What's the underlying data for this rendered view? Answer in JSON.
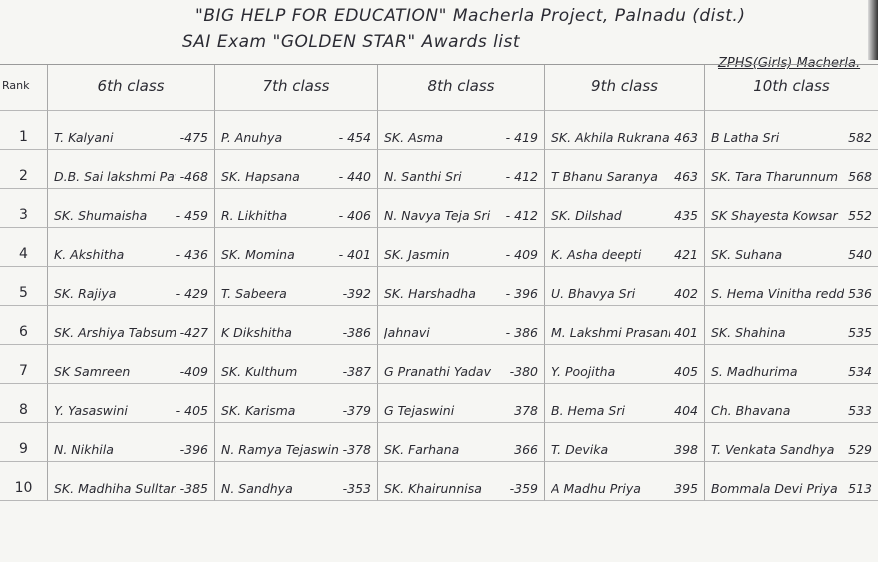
{
  "header": {
    "line1": "\"BIG HELP FOR EDUCATION\"  Macherla Project, Palnadu (dist.)",
    "line2": "SAI  Exam  \"GOLDEN STAR\"  Awards list",
    "school": "ZPHS(Girls) Macherla."
  },
  "columns": [
    "Rank",
    "6th class",
    "7th class",
    "8th class",
    "9th class",
    "10th class"
  ],
  "rows": [
    {
      "rank": "1",
      "entries": [
        {
          "name": "T. Kalyani",
          "score": "-475"
        },
        {
          "name": "P. Anuhya",
          "score": "- 454"
        },
        {
          "name": "SK. Asma",
          "score": "- 419"
        },
        {
          "name": "SK. Akhila Rukrana",
          "score": "463"
        },
        {
          "name": "B Latha Sri",
          "score": "582"
        }
      ]
    },
    {
      "rank": "2",
      "entries": [
        {
          "name": "D.B. Sai lakshmi Pavitra",
          "score": "-468"
        },
        {
          "name": "SK. Hapsana",
          "score": "- 440"
        },
        {
          "name": "N. Santhi Sri",
          "score": "- 412"
        },
        {
          "name": "T Bhanu Saranya",
          "score": "463"
        },
        {
          "name": "SK. Tara Tharunnum",
          "score": "568"
        }
      ]
    },
    {
      "rank": "3",
      "entries": [
        {
          "name": "SK. Shumaisha",
          "score": "- 459"
        },
        {
          "name": "R. Likhitha",
          "score": "- 406"
        },
        {
          "name": "N. Navya Teja Sri",
          "score": "- 412"
        },
        {
          "name": "SK. Dilshad",
          "score": "435"
        },
        {
          "name": "SK Shayesta Kowsar",
          "score": "552"
        }
      ]
    },
    {
      "rank": "4",
      "entries": [
        {
          "name": "K. Akshitha",
          "score": "- 436"
        },
        {
          "name": "SK. Momina",
          "score": "- 401"
        },
        {
          "name": "SK. Jasmin",
          "score": "- 409"
        },
        {
          "name": "K. Asha deepti",
          "score": "421"
        },
        {
          "name": "SK. Suhana",
          "score": "540"
        }
      ]
    },
    {
      "rank": "5",
      "entries": [
        {
          "name": "SK. Rajiya",
          "score": "- 429"
        },
        {
          "name": "T. Sabeera",
          "score": "-392"
        },
        {
          "name": "SK. Harshadha",
          "score": "- 396"
        },
        {
          "name": "U. Bhavya Sri",
          "score": "402"
        },
        {
          "name": "S. Hema Vinitha reddy",
          "score": "536"
        }
      ]
    },
    {
      "rank": "6",
      "entries": [
        {
          "name": "SK. Arshiya Tabsum",
          "score": "-427"
        },
        {
          "name": "K Dikshitha",
          "score": "-386"
        },
        {
          "name": "Jahnavi",
          "score": "- 386"
        },
        {
          "name": "M. Lakshmi Prasanna",
          "score": "401"
        },
        {
          "name": "SK. Shahina",
          "score": "535"
        }
      ]
    },
    {
      "rank": "7",
      "entries": [
        {
          "name": "SK Samreen",
          "score": "-409"
        },
        {
          "name": "SK. Kulthum",
          "score": "-387"
        },
        {
          "name": "G Pranathi Yadav",
          "score": "-380"
        },
        {
          "name": "Y. Poojitha",
          "score": "405"
        },
        {
          "name": "S. Madhurima",
          "score": "534"
        }
      ]
    },
    {
      "rank": "8",
      "entries": [
        {
          "name": "Y. Yasaswini",
          "score": "- 405"
        },
        {
          "name": "SK. Karisma",
          "score": "-379"
        },
        {
          "name": "G Tejaswini",
          "score": "378"
        },
        {
          "name": "B. Hema Sri",
          "score": "404"
        },
        {
          "name": "Ch. Bhavana",
          "score": "533"
        }
      ]
    },
    {
      "rank": "9",
      "entries": [
        {
          "name": "N. Nikhila",
          "score": "-396"
        },
        {
          "name": "N. Ramya Tejaswini",
          "score": "-378"
        },
        {
          "name": "SK. Farhana",
          "score": "366"
        },
        {
          "name": "T. Devika",
          "score": "398"
        },
        {
          "name": "T. Venkata Sandhya",
          "score": "529"
        }
      ]
    },
    {
      "rank": "10",
      "entries": [
        {
          "name": "SK. Madhiha Sulltana",
          "score": "-385"
        },
        {
          "name": "N. Sandhya",
          "score": "-353"
        },
        {
          "name": "SK. Khairunnisa",
          "score": "-359"
        },
        {
          "name": "A Madhu Priya",
          "score": "395"
        },
        {
          "name": "Bommala Devi Priya",
          "score": "513"
        }
      ]
    }
  ]
}
